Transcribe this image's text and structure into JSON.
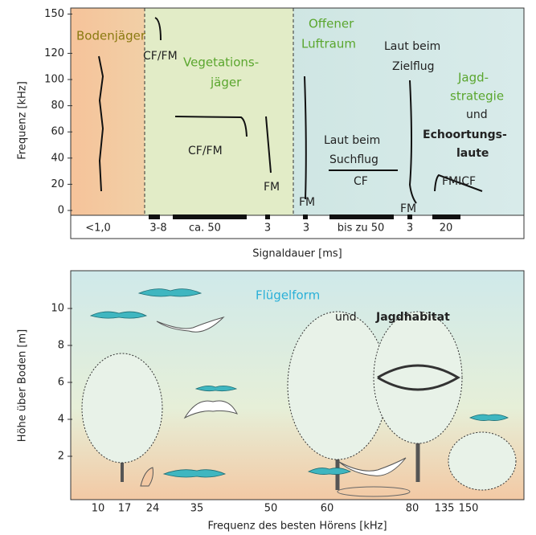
{
  "top": {
    "y_label": "Frequenz [kHz]",
    "yticks": [
      0,
      20,
      40,
      60,
      80,
      100,
      120,
      150
    ],
    "x_label": "Signaldauer [ms]",
    "durations": [
      "<1,0",
      "3-8",
      "ca. 50",
      "3",
      "3",
      "bis zu 50",
      "3",
      "20"
    ],
    "annotations": [
      "Bodenjäger",
      "CF/FM",
      "Vegetations-",
      "jäger",
      "CF/FM",
      "FM",
      "Offener",
      "Luftraum",
      "FM",
      "Laut beim",
      "Suchflug",
      "CF",
      "Laut beim",
      "Zielflug",
      "FM",
      "Jagd-",
      "strategie",
      "und",
      "Echoortungs-",
      "laute",
      "FMICF"
    ]
  },
  "bottom": {
    "y_label": "Höhe über Boden [m]",
    "yticks": [
      2,
      4,
      6,
      8,
      10
    ],
    "x_label": "Frequenz des besten Hörens [kHz]",
    "frequencies": [
      "10",
      "17",
      "24",
      "35",
      "50",
      "60",
      "80",
      "135",
      "150"
    ],
    "annotations": [
      "Flügelform",
      "und",
      "Jagdhabitat"
    ]
  }
}
